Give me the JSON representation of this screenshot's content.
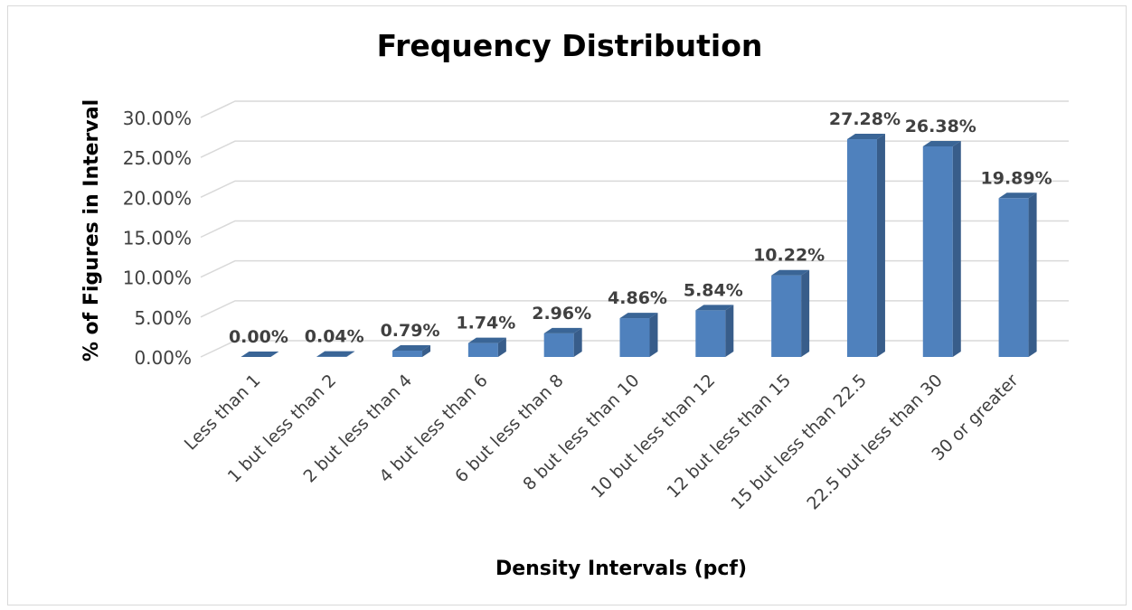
{
  "chart_data": {
    "type": "bar",
    "title": "Frequency Distribution",
    "xlabel": "Density Intervals (pcf)",
    "ylabel": "% of Figures in Interval",
    "categories": [
      "Less than 1",
      "1 but less than 2",
      "2 but less than 4",
      "4 but less than 6",
      "6 but less than 8",
      "8 but less than 10",
      "10 but less than 12",
      "12 but less than 15",
      "15 but less than 22.5",
      "22.5 but less than 30",
      "30 or greater"
    ],
    "values": [
      0.0,
      0.04,
      0.79,
      1.74,
      2.96,
      4.86,
      5.84,
      10.22,
      27.28,
      26.38,
      19.89
    ],
    "data_labels": [
      "0.00%",
      "0.04%",
      "0.79%",
      "1.74%",
      "2.96%",
      "4.86%",
      "5.84%",
      "10.22%",
      "27.28%",
      "26.38%",
      "19.89%"
    ],
    "ylim": [
      0,
      30
    ],
    "yticks": [
      0,
      5,
      10,
      15,
      20,
      25,
      30
    ],
    "ytick_labels": [
      "0.00%",
      "5.00%",
      "10.00%",
      "15.00%",
      "20.00%",
      "25.00%",
      "30.00%"
    ],
    "grid": true,
    "legend": "none",
    "style": "3d-column",
    "colors": {
      "bar_front": "#4f81bd",
      "bar_side": "#385d8a",
      "bar_top": "#3a6596",
      "grid": "#d9d9d9",
      "text": "#404040",
      "title": "#000000"
    }
  }
}
